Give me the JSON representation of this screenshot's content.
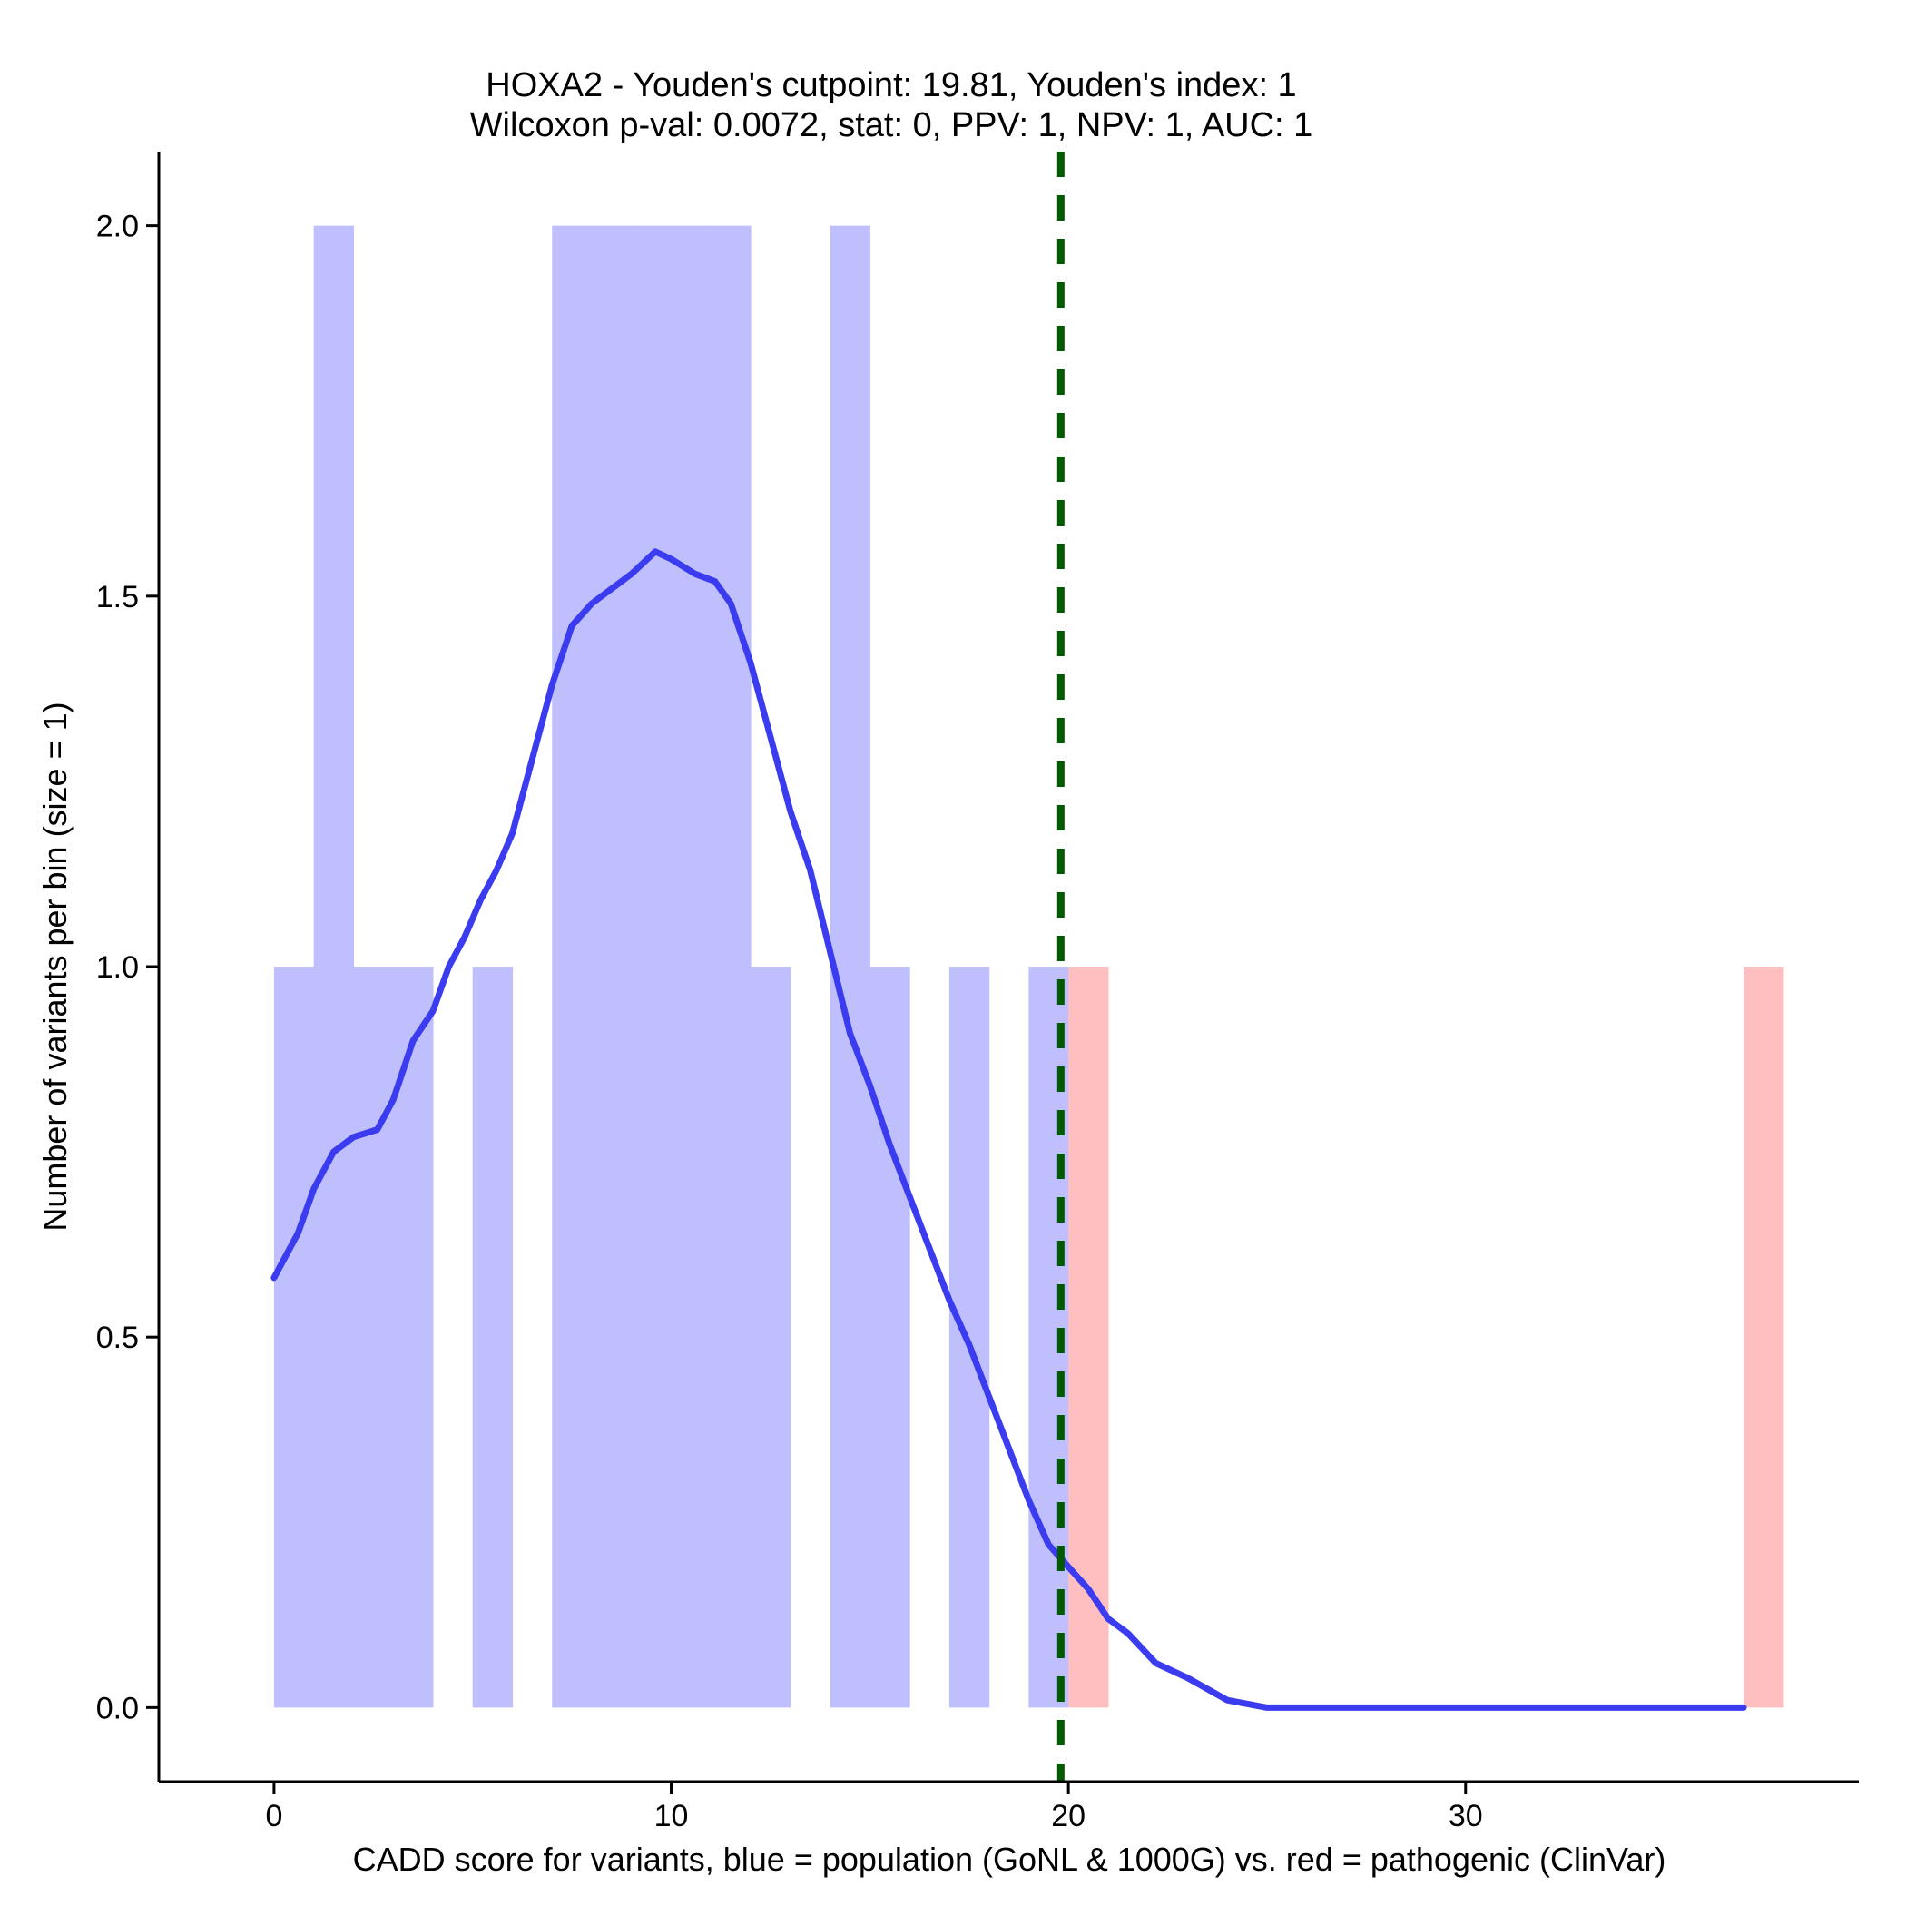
{
  "chart_data": {
    "type": "bar",
    "title": "HOXA2 - Youden's cutpoint: 19.81, Youden's index: 1",
    "subtitle": "Wilcoxon p-val: 0.0072, stat: 0, PPV: 1, NPV: 1, AUC: 1",
    "xlabel": "CADD score for variants, blue = population (GoNL & 1000G) vs. red = pathogenic (ClinVar)",
    "ylabel": "Number of variants per bin (size = 1)",
    "xlim": [
      -2.9,
      39.9
    ],
    "ylim": [
      -0.1,
      2.1
    ],
    "x_ticks": [
      0,
      10,
      20,
      30
    ],
    "x_tick_labels": [
      "0",
      "10",
      "20",
      "30"
    ],
    "y_ticks": [
      0,
      0.5,
      1,
      1.5,
      2
    ],
    "y_tick_labels": [
      "0.0",
      "0.5",
      "1.0",
      "1.5",
      "2.0"
    ],
    "bin_width": 1,
    "colors": {
      "population_bar": "#bfbffd",
      "pathogenic_bar": "#ffbfc1",
      "density_line": "#3b3bf0",
      "cutpoint_line": "#005a00"
    },
    "series": [
      {
        "name": "population (GoNL & 1000G)",
        "bins_start": [
          0,
          1,
          2,
          3,
          5,
          7,
          8,
          9,
          10,
          11,
          12,
          14,
          15,
          17,
          19
        ],
        "values": [
          1,
          2,
          1,
          1,
          1,
          2,
          2,
          2,
          2,
          2,
          1,
          2,
          1,
          1,
          1
        ]
      },
      {
        "name": "pathogenic (ClinVar)",
        "bins_start": [
          20,
          37
        ],
        "values": [
          1,
          1
        ]
      }
    ],
    "density_curve": {
      "x": [
        0,
        0.6,
        1,
        1.5,
        2,
        2.6,
        3,
        3.5,
        4,
        4.4,
        4.8,
        5.2,
        5.6,
        6,
        6.5,
        7,
        7.5,
        8,
        8.5,
        9,
        9.6,
        10,
        10.3,
        10.6,
        11.1,
        11.5,
        12,
        12.5,
        13,
        13.5,
        14,
        14.5,
        15,
        15.5,
        16,
        16.5,
        17,
        17.5,
        18,
        18.5,
        19,
        19.5,
        20,
        20.5,
        21,
        21.5,
        22.2,
        23,
        24,
        25,
        30,
        37
      ],
      "y": [
        0.58,
        0.64,
        0.7,
        0.75,
        0.77,
        0.78,
        0.82,
        0.9,
        0.94,
        1.0,
        1.04,
        1.09,
        1.13,
        1.18,
        1.28,
        1.38,
        1.46,
        1.49,
        1.51,
        1.53,
        1.56,
        1.55,
        1.54,
        1.53,
        1.52,
        1.49,
        1.41,
        1.31,
        1.21,
        1.13,
        1.02,
        0.91,
        0.84,
        0.76,
        0.69,
        0.62,
        0.55,
        0.49,
        0.42,
        0.35,
        0.28,
        0.22,
        0.19,
        0.16,
        0.12,
        0.1,
        0.06,
        0.04,
        0.01,
        0.0,
        0.0,
        0.0
      ]
    },
    "cutpoint": 19.81,
    "legend": "none"
  }
}
